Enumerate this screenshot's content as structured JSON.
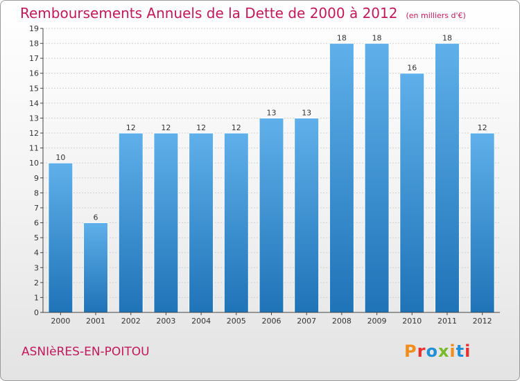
{
  "header": {
    "title": "Remboursements Annuels de la Dette de 2000 à 2012",
    "subtitle": "(en milliers d'€)"
  },
  "footer": {
    "commune": "ASNIèRES-EN-POITOU",
    "logo_text": "Proxiti"
  },
  "colors": {
    "title": "#c2185b",
    "bar_top": "#5fb0ea",
    "bar_bottom": "#1f73b7",
    "axis": "#444444",
    "grid": "#d0d0d0",
    "logo_letters": [
      "#f28c1a",
      "#e8312f",
      "#1f8fd6",
      "#7ab929",
      "#f28c1a",
      "#1f8fd6",
      "#e8312f"
    ]
  },
  "chart_data": {
    "type": "bar",
    "title": "Remboursements Annuels de la Dette de 2000 à 2012",
    "subtitle": "(en milliers d'€)",
    "xlabel": "",
    "ylabel": "",
    "categories": [
      "2000",
      "2001",
      "2002",
      "2003",
      "2004",
      "2005",
      "2006",
      "2007",
      "2008",
      "2009",
      "2010",
      "2011",
      "2012"
    ],
    "values": [
      10,
      6,
      12,
      12,
      12,
      12,
      13,
      13,
      18,
      18,
      16,
      18,
      12
    ],
    "data_labels": [
      "10",
      "6",
      "12",
      "12",
      "12",
      "12",
      "13",
      "13",
      "18",
      "18",
      "16",
      "18",
      "12"
    ],
    "ylim": [
      0,
      19
    ],
    "yticks": [
      0,
      1,
      2,
      3,
      4,
      5,
      6,
      7,
      8,
      9,
      10,
      11,
      12,
      13,
      14,
      15,
      16,
      17,
      18,
      19
    ],
    "ytick_labels": [
      "0",
      "1",
      "2",
      "3",
      "4",
      "5",
      "6",
      "7",
      "8",
      "9",
      "10",
      "11",
      "12",
      "13",
      "14",
      "15",
      "16",
      "17",
      "18",
      "19"
    ],
    "grid": true,
    "legend": "none"
  }
}
